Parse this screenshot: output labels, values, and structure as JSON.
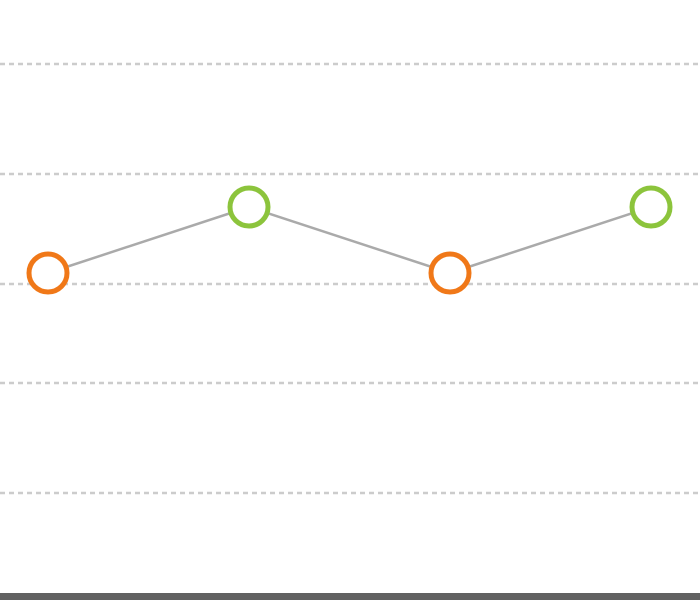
{
  "chart_data": {
    "type": "line",
    "title": "",
    "xlabel": "",
    "ylabel": "",
    "grid": true,
    "legend": "none",
    "x": [
      1,
      2,
      3,
      4
    ],
    "values": [
      40,
      46,
      40,
      46
    ],
    "point_colors": [
      "#f07818",
      "#8cc43c",
      "#f07818",
      "#8cc43c"
    ],
    "line_color": "#aaaaaa",
    "grid_color": "#cccccc",
    "baseline_color": "#616161",
    "gridline_values": [
      20,
      30,
      39,
      49,
      59
    ],
    "ylim": [
      10,
      60
    ]
  }
}
